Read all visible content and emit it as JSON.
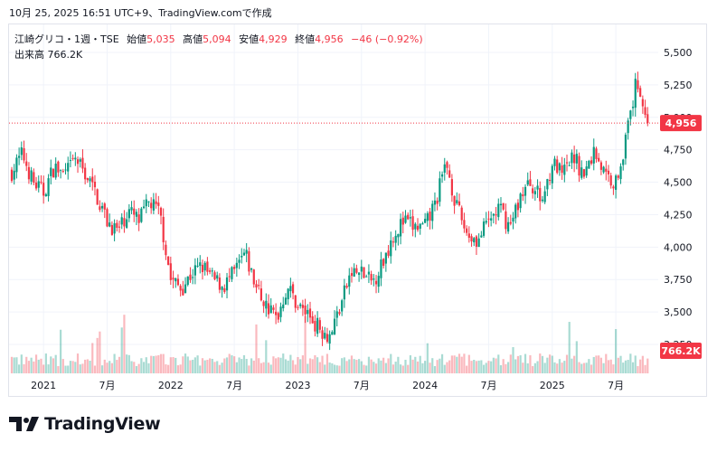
{
  "header": {
    "timestamp": "10月 25, 2025 16:51 UTC+9、TradingView.comで作成"
  },
  "legend": {
    "symbol": "江崎グリコ・1週・TSE",
    "open_label": "始値",
    "open_value": "5,035",
    "high_label": "高値",
    "high_value": "5,094",
    "low_label": "安値",
    "low_value": "4,929",
    "close_label": "終値",
    "close_value": "4,956",
    "change": "−46 (−0.92%)",
    "volume_label": "出来高",
    "volume_value": "766.2K"
  },
  "price_badge": "4,956",
  "volume_badge": "766.2K",
  "brand": {
    "name": "TradingView"
  },
  "colors": {
    "up": "#089981",
    "down": "#f23645",
    "grid": "#f0f3fa",
    "text": "#131722"
  },
  "chart_data": {
    "type": "candlestick",
    "interval": "1週",
    "y_axis": {
      "ticks": [
        3250,
        3500,
        3750,
        4000,
        4250,
        4500,
        4750,
        5000,
        5250,
        5500
      ],
      "tick_labels": [
        "3,250",
        "3,500",
        "3,750",
        "4,000",
        "4,250",
        "4,500",
        "4,750",
        "5,000",
        "5,250",
        "5,500"
      ],
      "range": [
        3220,
        5560
      ]
    },
    "x_axis": {
      "tick_labels": [
        "2021",
        "7月",
        "2022",
        "7月",
        "2023",
        "7月",
        "2024",
        "7月",
        "2025",
        "7月"
      ],
      "range": [
        "2020-10",
        "2025-11"
      ]
    },
    "last_price": 4956,
    "last_volume": "766.2K",
    "close_path": [
      {
        "x": "2020-10",
        "y": 4580
      },
      {
        "x": "2020-11",
        "y": 4720
      },
      {
        "x": "2020-12",
        "y": 4500
      },
      {
        "x": "2021-01",
        "y": 4420
      },
      {
        "x": "2021-02",
        "y": 4620
      },
      {
        "x": "2021-03",
        "y": 4550
      },
      {
        "x": "2021-04",
        "y": 4680
      },
      {
        "x": "2021-05",
        "y": 4560
      },
      {
        "x": "2021-06",
        "y": 4400
      },
      {
        "x": "2021-07",
        "y": 4200
      },
      {
        "x": "2021-08",
        "y": 4120
      },
      {
        "x": "2021-09",
        "y": 4280
      },
      {
        "x": "2021-10",
        "y": 4200
      },
      {
        "x": "2021-11",
        "y": 4350
      },
      {
        "x": "2021-12",
        "y": 4250
      },
      {
        "x": "2022-01",
        "y": 3750
      },
      {
        "x": "2022-02",
        "y": 3680
      },
      {
        "x": "2022-03",
        "y": 3800
      },
      {
        "x": "2022-04",
        "y": 3850
      },
      {
        "x": "2022-05",
        "y": 3750
      },
      {
        "x": "2022-06",
        "y": 3700
      },
      {
        "x": "2022-07",
        "y": 3800
      },
      {
        "x": "2022-08",
        "y": 3950
      },
      {
        "x": "2022-09",
        "y": 3700
      },
      {
        "x": "2022-10",
        "y": 3550
      },
      {
        "x": "2022-11",
        "y": 3450
      },
      {
        "x": "2022-12",
        "y": 3700
      },
      {
        "x": "2023-01",
        "y": 3550
      },
      {
        "x": "2023-02",
        "y": 3480
      },
      {
        "x": "2023-03",
        "y": 3380
      },
      {
        "x": "2023-04",
        "y": 3320
      },
      {
        "x": "2023-05",
        "y": 3550
      },
      {
        "x": "2023-06",
        "y": 3800
      },
      {
        "x": "2023-07",
        "y": 3800
      },
      {
        "x": "2023-08",
        "y": 3720
      },
      {
        "x": "2023-09",
        "y": 3880
      },
      {
        "x": "2023-10",
        "y": 4100
      },
      {
        "x": "2023-11",
        "y": 4200
      },
      {
        "x": "2023-12",
        "y": 4150
      },
      {
        "x": "2024-01",
        "y": 4150
      },
      {
        "x": "2024-02",
        "y": 4350
      },
      {
        "x": "2024-03",
        "y": 4650
      },
      {
        "x": "2024-04",
        "y": 4300
      },
      {
        "x": "2024-05",
        "y": 4100
      },
      {
        "x": "2024-06",
        "y": 4050
      },
      {
        "x": "2024-07",
        "y": 4200
      },
      {
        "x": "2024-08",
        "y": 4300
      },
      {
        "x": "2024-09",
        "y": 4150
      },
      {
        "x": "2024-10",
        "y": 4400
      },
      {
        "x": "2024-11",
        "y": 4500
      },
      {
        "x": "2024-12",
        "y": 4350
      },
      {
        "x": "2025-01",
        "y": 4650
      },
      {
        "x": "2025-02",
        "y": 4550
      },
      {
        "x": "2025-03",
        "y": 4700
      },
      {
        "x": "2025-04",
        "y": 4550
      },
      {
        "x": "2025-05",
        "y": 4750
      },
      {
        "x": "2025-06",
        "y": 4550
      },
      {
        "x": "2025-07",
        "y": 4500
      },
      {
        "x": "2025-08",
        "y": 4850
      },
      {
        "x": "2025-09",
        "y": 5300
      },
      {
        "x": "2025-10",
        "y": 4956
      }
    ]
  }
}
